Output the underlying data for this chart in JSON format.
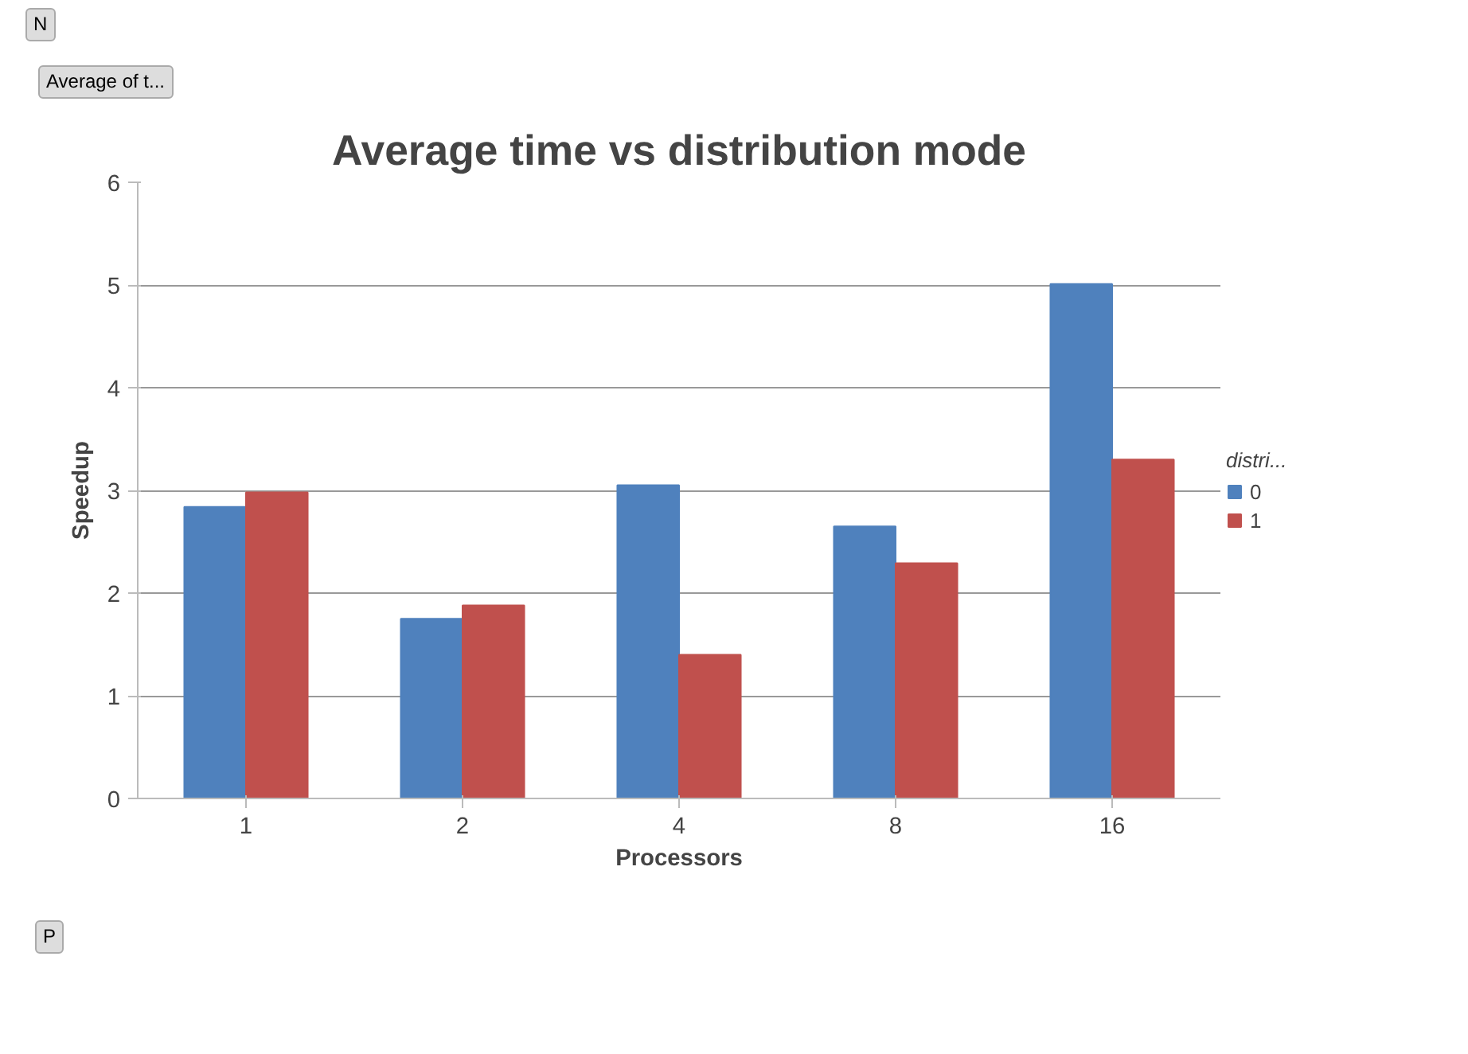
{
  "chart_data": {
    "type": "bar",
    "title": "Average time vs distribution mode",
    "xlabel": "Processors",
    "ylabel": "Speedup",
    "legend_title": "distri...",
    "categories": [
      "1",
      "2",
      "4",
      "8",
      "16"
    ],
    "series": [
      {
        "name": "0",
        "color": "#4f81bd",
        "values": [
          2.84,
          1.75,
          3.05,
          2.65,
          5.01
        ]
      },
      {
        "name": "1",
        "color": "#c0504d",
        "values": [
          2.98,
          1.88,
          1.4,
          2.29,
          3.3
        ]
      }
    ],
    "ylim": [
      0,
      6
    ],
    "yticks": [
      0,
      1,
      2,
      3,
      4,
      5,
      6
    ],
    "grid": "y",
    "legend": "right",
    "annotations": [
      "N",
      "Average of t...",
      "P"
    ]
  }
}
